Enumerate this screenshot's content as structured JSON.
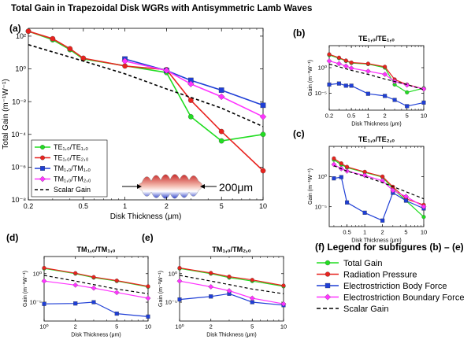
{
  "title": "Total Gain in Trapezoidal Disk WGRs with Antisymmetric Lamb Waves",
  "colors": {
    "green": "#22dd22",
    "red": "#e8231f",
    "blue": "#1f3fd6",
    "magenta": "#ff33ff",
    "black": "#000000"
  },
  "chart_data": [
    {
      "id": "a",
      "panel_label": "(a)",
      "type": "line",
      "title": "",
      "xlabel": "Disk Thickness (μm)",
      "ylabel": "Total Gain (m⁻¹W⁻¹)",
      "xscale": "log",
      "yscale": "log",
      "xlim": [
        0.2,
        10
      ],
      "ylim": [
        1e-08,
        300
      ],
      "xticks": [
        0.2,
        0.5,
        1,
        2,
        5,
        10
      ],
      "xtick_labels": [
        "0.2",
        "0.5",
        "1",
        "2",
        "5",
        "10"
      ],
      "yticks": [
        1e-08,
        1e-06,
        0.0001,
        0.01,
        1,
        100
      ],
      "ytick_labels": [
        "10⁻⁸",
        "10⁻⁶",
        "10⁻⁴",
        "10⁻²",
        "10⁰",
        "10²"
      ],
      "grid": false,
      "legend_position": "bottom-left",
      "annotation": "200μm",
      "series": [
        {
          "name": "TE₁,₀/TE₁,₀",
          "color": "#22dd22",
          "marker": "circle",
          "dashed": false,
          "x": [
            0.2,
            0.3,
            0.4,
            0.5,
            2,
            3,
            5,
            10
          ],
          "y": [
            200,
            60,
            15,
            4,
            0.6,
            0.0012,
            4e-05,
            0.0001
          ]
        },
        {
          "name": "TE₁,₀/TE₂,₀",
          "color": "#e8231f",
          "marker": "circle",
          "dashed": false,
          "x": [
            0.2,
            0.3,
            0.4,
            0.5,
            1,
            2,
            3,
            5,
            10
          ],
          "y": [
            200,
            70,
            17,
            4.5,
            1.5,
            0.9,
            0.012,
            0.00015,
            6e-07
          ]
        },
        {
          "name": "TM₁,₀/TM₁,₀",
          "color": "#1f3fd6",
          "marker": "square",
          "dashed": false,
          "x": [
            1,
            2,
            3,
            5,
            10
          ],
          "y": [
            4,
            0.8,
            0.2,
            0.05,
            0.006
          ]
        },
        {
          "name": "TM₁,₀/TM₂,₀",
          "color": "#ff33ff",
          "marker": "diamond",
          "dashed": false,
          "x": [
            1,
            2,
            3,
            5,
            10
          ],
          "y": [
            3,
            0.8,
            0.12,
            0.02,
            0.0012
          ]
        },
        {
          "name": "Scalar Gain",
          "color": "#000000",
          "marker": "none",
          "dashed": true,
          "x": [
            0.2,
            0.5,
            1,
            2,
            5,
            10
          ],
          "y": [
            30,
            3,
            0.5,
            0.06,
            0.004,
            0.0003
          ]
        }
      ]
    },
    {
      "id": "b",
      "panel_label": "(b)",
      "type": "line",
      "title": "TE₁,₀/TE₁,₀",
      "xlabel": "Disk Thickness (μm)",
      "ylabel": "Gain (m⁻¹W⁻¹)",
      "xscale": "log",
      "yscale": "log",
      "xlim": [
        0.2,
        10
      ],
      "ylim": [
        5e-09,
        20000
      ],
      "xticks": [
        0.2,
        0.5,
        1,
        2,
        5,
        10
      ],
      "xtick_labels": [
        "0.2",
        "0.5",
        "1",
        "2",
        "5",
        "10"
      ],
      "yticks": [
        1e-05,
        1
      ],
      "ytick_labels": [
        "10⁻⁵",
        "10⁰"
      ],
      "series": [
        {
          "name": "Total Gain",
          "color": "#22dd22",
          "marker": "circle",
          "dashed": false,
          "x": [
            0.2,
            0.3,
            0.4,
            0.5,
            1,
            2,
            3,
            5,
            10
          ],
          "y": [
            300,
            70,
            20,
            8,
            5,
            1,
            0.0005,
            1.5e-05,
            0.0001
          ]
        },
        {
          "name": "Radiation Pressure",
          "color": "#e8231f",
          "marker": "circle",
          "dashed": false,
          "x": [
            0.2,
            0.3,
            0.4,
            0.5,
            1,
            2,
            3,
            5,
            10
          ],
          "y": [
            400,
            90,
            25,
            10,
            6,
            1.5,
            0.005,
            0.0005,
            7e-05
          ]
        },
        {
          "name": "Electrostriction Body Force",
          "color": "#1f3fd6",
          "marker": "square",
          "dashed": false,
          "x": [
            0.2,
            0.3,
            0.4,
            0.5,
            1,
            2,
            3,
            5,
            10
          ],
          "y": [
            0.0005,
            0.0008,
            0.0003,
            0.0003,
            8e-06,
            3e-06,
            5e-07,
            3e-08,
            1.5e-07
          ]
        },
        {
          "name": "Electrostriction Boundary Force",
          "color": "#ff33ff",
          "marker": "diamond",
          "dashed": false,
          "x": [
            0.2,
            0.3,
            0.4,
            0.5,
            1,
            2,
            3,
            5,
            10
          ],
          "y": [
            20,
            6,
            2,
            0.8,
            0.2,
            0.05,
            0.002,
            0.0004,
            7e-05
          ]
        },
        {
          "name": "Scalar Gain",
          "color": "#000000",
          "marker": "none",
          "dashed": true,
          "x": [
            0.2,
            0.5,
            1,
            2,
            5,
            10
          ],
          "y": [
            5,
            0.3,
            0.05,
            0.006,
            0.0005,
            5e-05
          ]
        }
      ]
    },
    {
      "id": "c",
      "panel_label": "(c)",
      "type": "line",
      "title": "TE₁,₀/TE₂,₀",
      "xlabel": "Disk Thickness (μm)",
      "ylabel": "Gain (m⁻¹W⁻¹)",
      "xscale": "log",
      "yscale": "log",
      "xlim": [
        0.25,
        10
      ],
      "ylim": [
        5e-09,
        100000
      ],
      "xticks": [
        0.5,
        1,
        2,
        5,
        10
      ],
      "xtick_labels": [
        "0.5",
        "1",
        "2",
        "5",
        "10"
      ],
      "yticks": [
        1e-05,
        1
      ],
      "ytick_labels": [
        "10⁻⁵",
        "10⁰"
      ],
      "series": [
        {
          "name": "Total Gain",
          "color": "#22dd22",
          "marker": "circle",
          "dashed": false,
          "x": [
            0.3,
            0.4,
            0.5,
            1,
            2,
            3,
            5,
            10
          ],
          "y": [
            600,
            90,
            30,
            5,
            0.8,
            0.01,
            0.0001,
            2e-07
          ]
        },
        {
          "name": "Radiation Pressure",
          "color": "#e8231f",
          "marker": "circle",
          "dashed": false,
          "x": [
            0.3,
            0.4,
            0.5,
            1,
            2,
            3,
            5,
            10
          ],
          "y": [
            1000,
            150,
            40,
            6,
            1,
            0.02,
            0.0002,
            2e-05
          ]
        },
        {
          "name": "Electrostriction Body Force",
          "color": "#1f3fd6",
          "marker": "square",
          "dashed": false,
          "x": [
            0.3,
            0.4,
            0.5,
            1,
            2,
            3,
            5,
            10
          ],
          "y": [
            0.5,
            0.8,
            5e-05,
            1e-06,
            5e-08,
            0.002,
            0.0001,
            5e-06
          ]
        },
        {
          "name": "Electrostriction Boundary Force",
          "color": "#ff33ff",
          "marker": "diamond",
          "dashed": false,
          "x": [
            0.3,
            0.4,
            0.5,
            1,
            2,
            3,
            5,
            10
          ],
          "y": [
            100,
            20,
            8,
            1.5,
            0.2,
            0.005,
            0.0005,
            1e-05
          ]
        },
        {
          "name": "Scalar Gain",
          "color": "#000000",
          "marker": "none",
          "dashed": true,
          "x": [
            0.3,
            0.5,
            1,
            2,
            5,
            10
          ],
          "y": [
            60,
            8,
            1,
            0.1,
            0.003,
            0.0002
          ]
        }
      ]
    },
    {
      "id": "d",
      "panel_label": "(d)",
      "type": "line",
      "title": "TM₁,₀/TM₁,₀",
      "xlabel": "Disk Thickness (μm)",
      "ylabel": "Gain (m⁻¹W⁻¹)",
      "xscale": "log",
      "yscale": "log",
      "xlim": [
        1,
        10
      ],
      "ylim": [
        5e-09,
        1000
      ],
      "xticks": [
        1,
        2,
        5,
        10
      ],
      "xtick_labels": [
        "10⁰",
        "2",
        "5",
        "10"
      ],
      "yticks": [
        1e-05,
        1
      ],
      "ytick_labels": [
        "10⁻⁵",
        "10⁰"
      ],
      "series": [
        {
          "name": "Total Gain",
          "color": "#22dd22",
          "marker": "circle",
          "dashed": false,
          "x": [
            1,
            2,
            3,
            5,
            10
          ],
          "y": [
            8,
            1,
            0.2,
            0.05,
            0.005
          ]
        },
        {
          "name": "Radiation Pressure",
          "color": "#e8231f",
          "marker": "circle",
          "dashed": false,
          "x": [
            1,
            2,
            3,
            5,
            10
          ],
          "y": [
            10,
            1.2,
            0.25,
            0.06,
            0.006
          ]
        },
        {
          "name": "Electrostriction Body Force",
          "color": "#1f3fd6",
          "marker": "square",
          "dashed": false,
          "x": [
            1,
            2,
            3,
            5,
            10
          ],
          "y": [
            5e-06,
            6e-06,
            1e-05,
            1e-07,
            3e-08
          ]
        },
        {
          "name": "Electrostriction Boundary Force",
          "color": "#ff33ff",
          "marker": "diamond",
          "dashed": false,
          "x": [
            1,
            2,
            3,
            5,
            10
          ],
          "y": [
            0.05,
            0.01,
            0.003,
            0.0005,
            5e-05
          ]
        },
        {
          "name": "Scalar Gain",
          "color": "#000000",
          "marker": "none",
          "dashed": true,
          "x": [
            1,
            2,
            5,
            10
          ],
          "y": [
            0.5,
            0.05,
            0.002,
            0.0003
          ]
        }
      ]
    },
    {
      "id": "e",
      "panel_label": "(e)",
      "type": "line",
      "title": "TM₁,₀/TM₂,₀",
      "xlabel": "Disk Thickness (μm)",
      "ylabel": "Gain (m⁻¹W⁻¹)",
      "xscale": "log",
      "yscale": "log",
      "xlim": [
        1,
        10
      ],
      "ylim": [
        5e-09,
        1000
      ],
      "xticks": [
        1,
        2,
        5,
        10
      ],
      "xtick_labels": [
        "10⁰",
        "2",
        "5",
        "10"
      ],
      "yticks": [
        1e-05,
        1
      ],
      "ytick_labels": [
        "10⁻⁵",
        "10⁰"
      ],
      "series": [
        {
          "name": "Total Gain",
          "color": "#22dd22",
          "marker": "circle",
          "dashed": false,
          "x": [
            1,
            2,
            3,
            5,
            10
          ],
          "y": [
            8,
            1,
            0.2,
            0.05,
            0.006
          ]
        },
        {
          "name": "Radiation Pressure",
          "color": "#e8231f",
          "marker": "circle",
          "dashed": false,
          "x": [
            1,
            2,
            3,
            5,
            10
          ],
          "y": [
            10,
            1.3,
            0.3,
            0.08,
            0.008
          ]
        },
        {
          "name": "Electrostriction Body Force",
          "color": "#1f3fd6",
          "marker": "square",
          "dashed": false,
          "x": [
            1,
            2,
            3,
            5,
            10
          ],
          "y": [
            3e-05,
            0.0001,
            0.0003,
            1e-05,
            3e-06
          ]
        },
        {
          "name": "Electrostriction Boundary Force",
          "color": "#ff33ff",
          "marker": "diamond",
          "dashed": false,
          "x": [
            1,
            2,
            3,
            5,
            10
          ],
          "y": [
            0.05,
            0.005,
            0.001,
            5e-05,
            5e-06
          ]
        },
        {
          "name": "Scalar Gain",
          "color": "#000000",
          "marker": "none",
          "dashed": true,
          "x": [
            1,
            2,
            5,
            10
          ],
          "y": [
            0.5,
            0.05,
            0.002,
            0.0003
          ]
        }
      ]
    }
  ],
  "legend_f": {
    "title": "(f) Legend for subfigures (b) – (e)",
    "items": [
      {
        "label": "Total Gain",
        "color": "#22dd22",
        "marker": "circle",
        "dashed": false
      },
      {
        "label": "Radiation Pressure",
        "color": "#e8231f",
        "marker": "circle",
        "dashed": false
      },
      {
        "label": "Electrostriction Body Force",
        "color": "#1f3fd6",
        "marker": "square",
        "dashed": false
      },
      {
        "label": "Electrostriction Boundary Force",
        "color": "#ff33ff",
        "marker": "diamond",
        "dashed": false
      },
      {
        "label": "Scalar Gain",
        "color": "#000000",
        "marker": "none",
        "dashed": true
      }
    ]
  }
}
